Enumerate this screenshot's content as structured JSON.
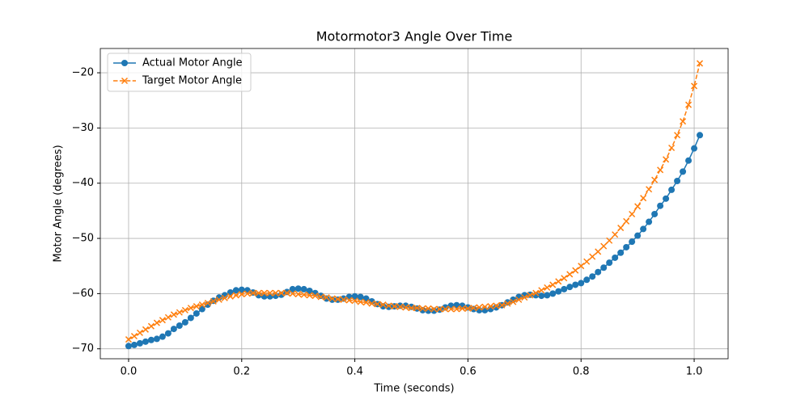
{
  "chart_data": {
    "type": "line",
    "title": "Motormotor3 Angle Over Time",
    "xlabel": "Time (seconds)",
    "ylabel": "Motor Angle (degrees)",
    "x": [
      0,
      0.01,
      0.02,
      0.03,
      0.04,
      0.05,
      0.06,
      0.07,
      0.08,
      0.09,
      0.1,
      0.11,
      0.12,
      0.13,
      0.14,
      0.15,
      0.16,
      0.17,
      0.18,
      0.19,
      0.2,
      0.21,
      0.22,
      0.23,
      0.24,
      0.25,
      0.26,
      0.27,
      0.28,
      0.29,
      0.3,
      0.31,
      0.32,
      0.33,
      0.34,
      0.35,
      0.36,
      0.37,
      0.38,
      0.39,
      0.4,
      0.41,
      0.42,
      0.43,
      0.44,
      0.45,
      0.46,
      0.47,
      0.48,
      0.49,
      0.5,
      0.51,
      0.52,
      0.53,
      0.54,
      0.55,
      0.56,
      0.57,
      0.58,
      0.59,
      0.6,
      0.61,
      0.62,
      0.63,
      0.64,
      0.65,
      0.66,
      0.67,
      0.68,
      0.69,
      0.7,
      0.71,
      0.72,
      0.73,
      0.74,
      0.75,
      0.76,
      0.77,
      0.78,
      0.79,
      0.8,
      0.81,
      0.82,
      0.83,
      0.84,
      0.85,
      0.86,
      0.87,
      0.88,
      0.89,
      0.9,
      0.91,
      0.92,
      0.93,
      0.94,
      0.95,
      0.96,
      0.97,
      0.98,
      0.99,
      1.0,
      1.01
    ],
    "series": [
      {
        "name": "Actual Motor Angle",
        "color": "#1f77b4",
        "marker": "circle",
        "linestyle": "solid",
        "values": [
          -69.5,
          -69.3,
          -69,
          -68.7,
          -68.4,
          -68.2,
          -67.8,
          -67.2,
          -66.4,
          -65.8,
          -65.2,
          -64.4,
          -63.6,
          -62.8,
          -62,
          -61.3,
          -60.7,
          -60.3,
          -59.8,
          -59.4,
          -59.3,
          -59.4,
          -59.8,
          -60.3,
          -60.5,
          -60.5,
          -60.4,
          -60.2,
          -59.7,
          -59.2,
          -59.1,
          -59.2,
          -59.5,
          -59.9,
          -60.4,
          -60.9,
          -61.1,
          -61.1,
          -60.9,
          -60.6,
          -60.5,
          -60.6,
          -60.9,
          -61.4,
          -61.9,
          -62.3,
          -62.4,
          -62.3,
          -62.2,
          -62.2,
          -62.4,
          -62.7,
          -63,
          -63.1,
          -63.1,
          -62.9,
          -62.5,
          -62.2,
          -62.1,
          -62.2,
          -62.5,
          -62.8,
          -63,
          -63,
          -62.8,
          -62.5,
          -62.1,
          -61.6,
          -61.1,
          -60.6,
          -60.3,
          -60.2,
          -60.3,
          -60.4,
          -60.3,
          -60,
          -59.6,
          -59.2,
          -58.8,
          -58.4,
          -58.1,
          -57.5,
          -56.9,
          -56.1,
          -55.3,
          -54.4,
          -53.5,
          -52.6,
          -51.6,
          -50.6,
          -49.5,
          -48.3,
          -47,
          -45.6,
          -44.1,
          -42.8,
          -41.2,
          -39.6,
          -37.9,
          -35.9,
          -33.7,
          -31.3
        ]
      },
      {
        "name": "Target Motor Angle",
        "color": "#ff7f0e",
        "marker": "x",
        "linestyle": "dashed",
        "values": [
          -68.3,
          -67.7,
          -67.1,
          -66.5,
          -65.9,
          -65.3,
          -64.8,
          -64.3,
          -63.8,
          -63.4,
          -63,
          -62.6,
          -62.3,
          -62,
          -61.7,
          -61.4,
          -61.1,
          -60.8,
          -60.5,
          -60.3,
          -60.1,
          -60,
          -59.9,
          -59.9,
          -59.9,
          -59.9,
          -59.9,
          -59.9,
          -59.9,
          -60,
          -60.1,
          -60.2,
          -60.3,
          -60.4,
          -60.6,
          -60.7,
          -60.9,
          -61,
          -61.1,
          -61.2,
          -61.3,
          -61.5,
          -61.6,
          -61.8,
          -61.9,
          -62,
          -62.2,
          -62.3,
          -62.4,
          -62.5,
          -62.6,
          -62.6,
          -62.7,
          -62.7,
          -62.8,
          -62.8,
          -62.8,
          -62.8,
          -62.8,
          -62.7,
          -62.7,
          -62.6,
          -62.5,
          -62.4,
          -62.3,
          -62.2,
          -62.1,
          -61.8,
          -61.5,
          -61.1,
          -60.7,
          -60.3,
          -59.9,
          -59.4,
          -58.9,
          -58.4,
          -57.8,
          -57.2,
          -56.5,
          -55.8,
          -55,
          -54.2,
          -53.3,
          -52.4,
          -51.4,
          -50.4,
          -49.3,
          -48.1,
          -46.9,
          -45.6,
          -44.2,
          -42.7,
          -41.1,
          -39.4,
          -37.6,
          -35.7,
          -33.6,
          -31.3,
          -28.8,
          -25.8,
          -22.4,
          -18.3
        ]
      }
    ],
    "xlim": [
      -0.05,
      1.06
    ],
    "ylim": [
      -71.8,
      -15.6
    ],
    "xticks": [
      {
        "value": 0,
        "label": "0.0"
      },
      0.2,
      0.4,
      0.6,
      0.8,
      {
        "value": 1,
        "label": "1.0"
      }
    ],
    "yticks": [
      {
        "value": -70,
        "label": "−70"
      },
      {
        "value": -60,
        "label": "−60"
      },
      {
        "value": -50,
        "label": "−50"
      },
      {
        "value": -40,
        "label": "−40"
      },
      {
        "value": -30,
        "label": "−30"
      },
      {
        "value": -20,
        "label": "−20"
      }
    ],
    "grid": true,
    "legend": "upper left"
  }
}
